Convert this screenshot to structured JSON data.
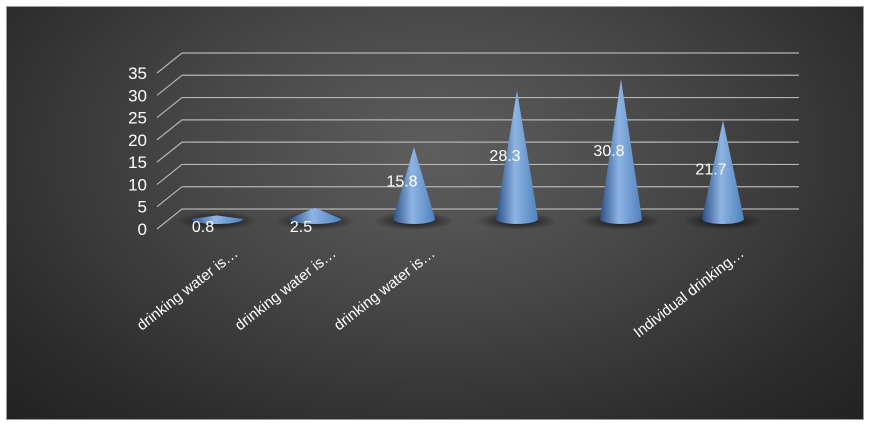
{
  "chart_data": {
    "type": "bar",
    "style": "3d-cone",
    "categories": [
      "drinking water is…",
      "drinking water is…",
      "drinking water is…",
      "",
      "",
      "Individual drinking…"
    ],
    "values": [
      0.8,
      2.5,
      15.8,
      28.3,
      30.8,
      21.7
    ],
    "data_labels": [
      "0.8",
      "2.5",
      "15.8",
      "28.3",
      "30.8",
      "21.7"
    ],
    "y_ticks": [
      "0",
      "5",
      "10",
      "15",
      "20",
      "25",
      "30",
      "35"
    ],
    "ylim": [
      0,
      35
    ],
    "grid": true,
    "colors": {
      "bar": "#4f81bd",
      "bar_light": "#8eb4e3",
      "bar_dark": "#2a4f86",
      "gridline": "#b4b4b4",
      "text": "#ffffff"
    }
  }
}
